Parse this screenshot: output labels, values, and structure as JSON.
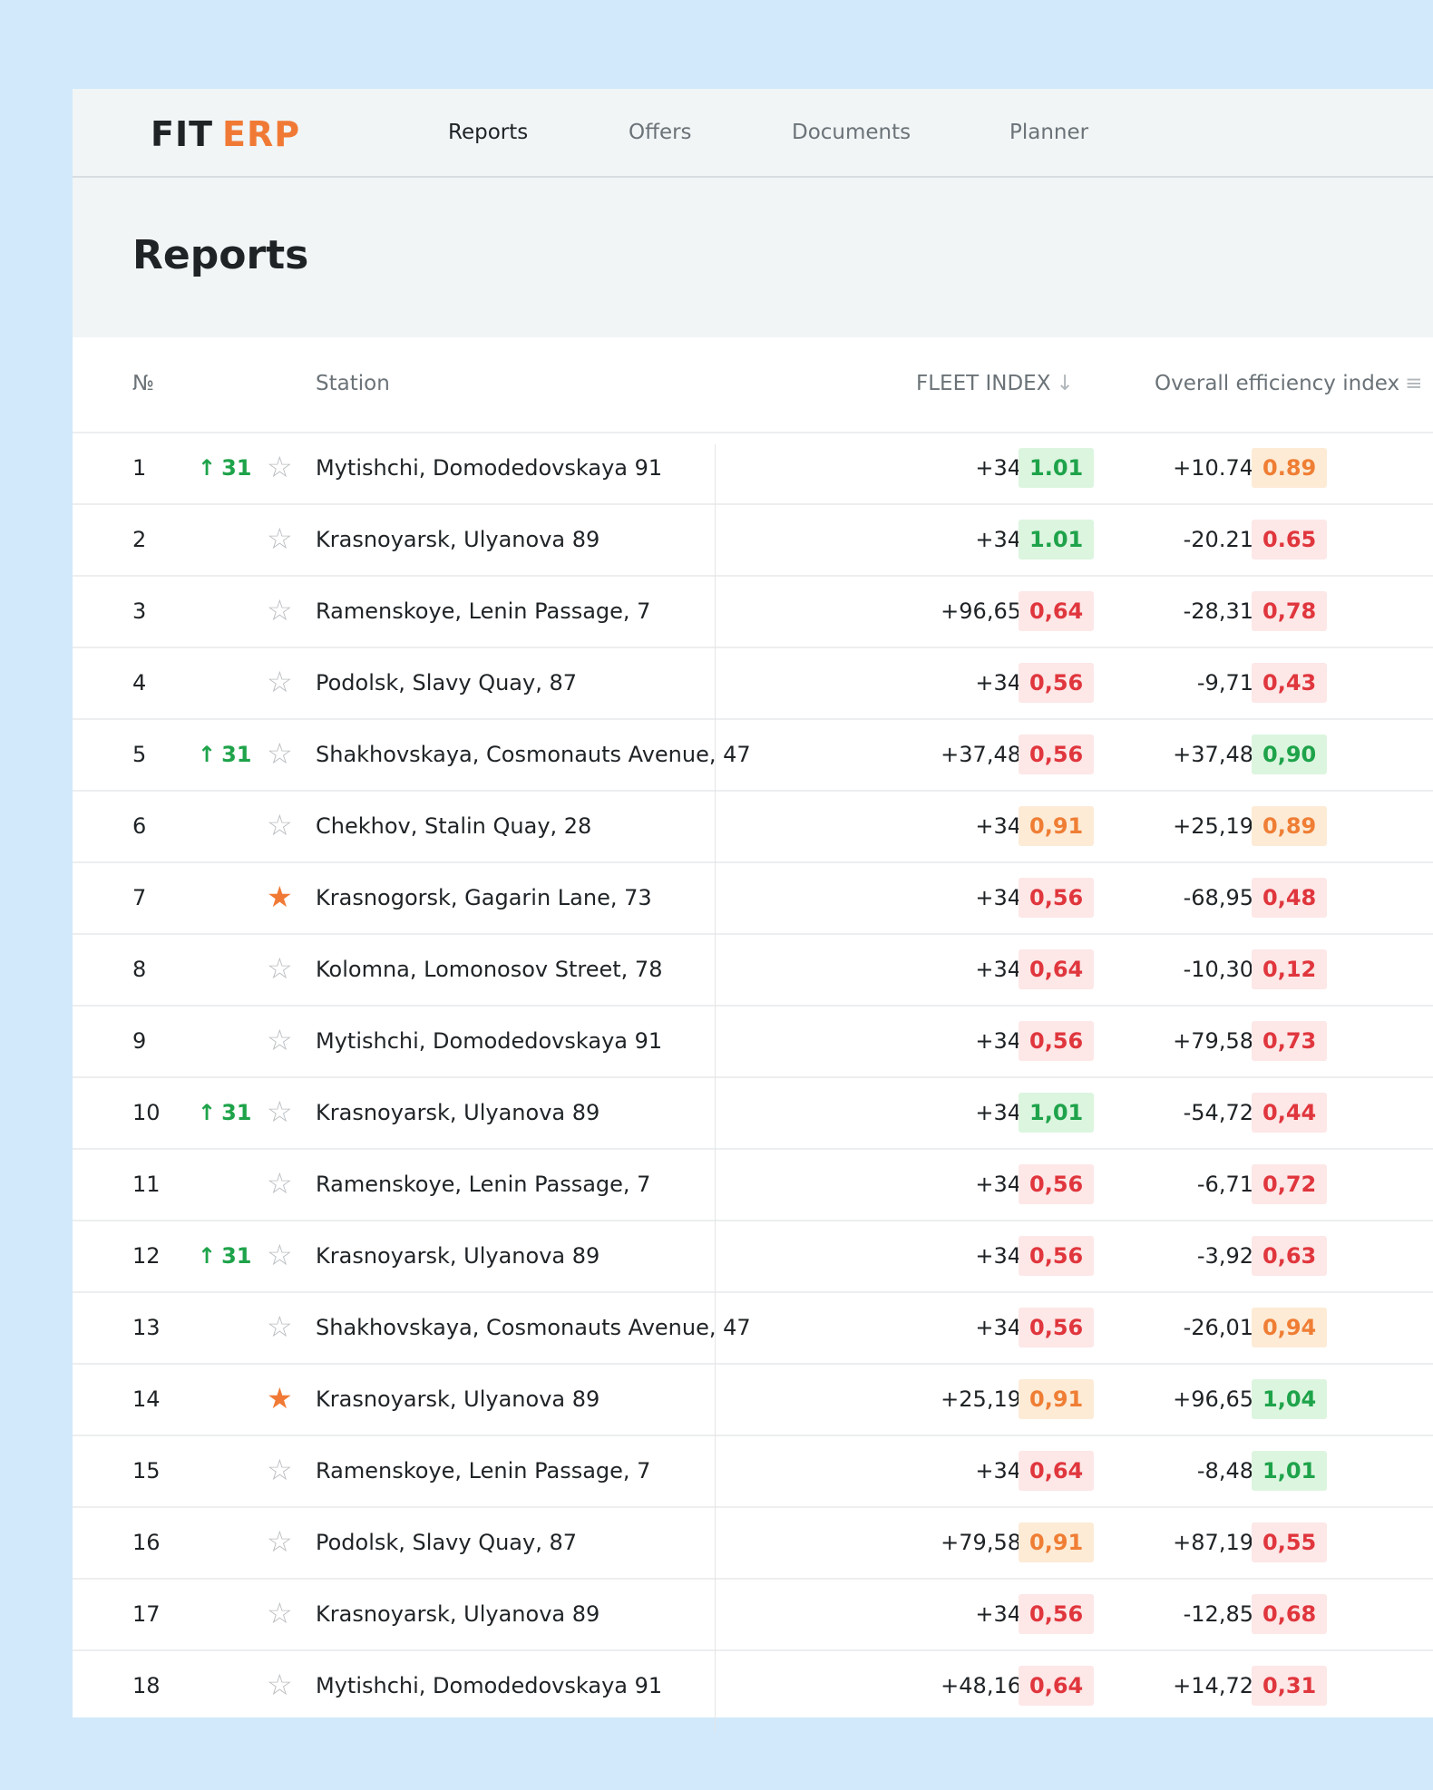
{
  "brand": {
    "part1": "FIT",
    "part2": "ERP"
  },
  "nav": [
    {
      "label": "Reports",
      "active": true
    },
    {
      "label": "Offers",
      "active": false
    },
    {
      "label": "Documents",
      "active": false
    },
    {
      "label": "Planner",
      "active": false
    }
  ],
  "page_title": "Reports",
  "columns": {
    "num": "№",
    "station": "Station",
    "fleet_index": "FLEET INDEX",
    "overall_efficiency": "Overall efficiency index"
  },
  "colors": {
    "green": "#1ea34a",
    "red": "#e0363d",
    "orange": "#ef7e34",
    "accent": "#f07a35"
  },
  "rows": [
    {
      "num": "1",
      "delta": "31",
      "starred": false,
      "station": "Mytishchi, Domodedovskaya 91",
      "fleet_change": "+34",
      "fleet_value": "1.01",
      "fleet_status": "green",
      "eff_change": "+10.74",
      "eff_value": "0.89",
      "eff_status": "orange"
    },
    {
      "num": "2",
      "delta": "",
      "starred": false,
      "station": "Krasnoyarsk, Ulyanova 89",
      "fleet_change": "+34",
      "fleet_value": "1.01",
      "fleet_status": "green",
      "eff_change": "-20.21",
      "eff_value": "0.65",
      "eff_status": "red"
    },
    {
      "num": "3",
      "delta": "",
      "starred": false,
      "station": "Ramenskoye, Lenin Passage, 7",
      "fleet_change": "+96,65",
      "fleet_value": "0,64",
      "fleet_status": "red",
      "eff_change": "-28,31",
      "eff_value": "0,78",
      "eff_status": "red"
    },
    {
      "num": "4",
      "delta": "",
      "starred": false,
      "station": "Podolsk, Slavy Quay, 87",
      "fleet_change": "+34",
      "fleet_value": "0,56",
      "fleet_status": "red",
      "eff_change": "-9,71",
      "eff_value": "0,43",
      "eff_status": "red"
    },
    {
      "num": "5",
      "delta": "31",
      "starred": false,
      "station": "Shakhovskaya, Cosmonauts Avenue, 47",
      "fleet_change": "+37,48",
      "fleet_value": "0,56",
      "fleet_status": "red",
      "eff_change": "+37,48",
      "eff_value": "0,90",
      "eff_status": "green"
    },
    {
      "num": "6",
      "delta": "",
      "starred": false,
      "station": "Chekhov, Stalin Quay, 28",
      "fleet_change": "+34",
      "fleet_value": "0,91",
      "fleet_status": "orange",
      "eff_change": "+25,19",
      "eff_value": "0,89",
      "eff_status": "orange"
    },
    {
      "num": "7",
      "delta": "",
      "starred": true,
      "station": "Krasnogorsk, Gagarin Lane, 73",
      "fleet_change": "+34",
      "fleet_value": "0,56",
      "fleet_status": "red",
      "eff_change": "-68,95",
      "eff_value": "0,48",
      "eff_status": "red"
    },
    {
      "num": "8",
      "delta": "",
      "starred": false,
      "station": "Kolomna, Lomonosov Street, 78",
      "fleet_change": "+34",
      "fleet_value": "0,64",
      "fleet_status": "red",
      "eff_change": "-10,30",
      "eff_value": "0,12",
      "eff_status": "red"
    },
    {
      "num": "9",
      "delta": "",
      "starred": false,
      "station": "Mytishchi, Domodedovskaya 91",
      "fleet_change": "+34",
      "fleet_value": "0,56",
      "fleet_status": "red",
      "eff_change": "+79,58",
      "eff_value": "0,73",
      "eff_status": "red"
    },
    {
      "num": "10",
      "delta": "31",
      "starred": false,
      "station": "Krasnoyarsk, Ulyanova 89",
      "fleet_change": "+34",
      "fleet_value": "1,01",
      "fleet_status": "green",
      "eff_change": "-54,72",
      "eff_value": "0,44",
      "eff_status": "red"
    },
    {
      "num": "11",
      "delta": "",
      "starred": false,
      "station": "Ramenskoye, Lenin Passage, 7",
      "fleet_change": "+34",
      "fleet_value": "0,56",
      "fleet_status": "red",
      "eff_change": "-6,71",
      "eff_value": "0,72",
      "eff_status": "red"
    },
    {
      "num": "12",
      "delta": "31",
      "starred": false,
      "station": "Krasnoyarsk, Ulyanova 89",
      "fleet_change": "+34",
      "fleet_value": "0,56",
      "fleet_status": "red",
      "eff_change": "-3,92",
      "eff_value": "0,63",
      "eff_status": "red"
    },
    {
      "num": "13",
      "delta": "",
      "starred": false,
      "station": "Shakhovskaya, Cosmonauts Avenue, 47",
      "fleet_change": "+34",
      "fleet_value": "0,56",
      "fleet_status": "red",
      "eff_change": "-26,01",
      "eff_value": "0,94",
      "eff_status": "orange"
    },
    {
      "num": "14",
      "delta": "",
      "starred": true,
      "station": "Krasnoyarsk, Ulyanova 89",
      "fleet_change": "+25,19",
      "fleet_value": "0,91",
      "fleet_status": "orange",
      "eff_change": "+96,65",
      "eff_value": "1,04",
      "eff_status": "green"
    },
    {
      "num": "15",
      "delta": "",
      "starred": false,
      "station": "Ramenskoye, Lenin Passage, 7",
      "fleet_change": "+34",
      "fleet_value": "0,64",
      "fleet_status": "red",
      "eff_change": "-8,48",
      "eff_value": "1,01",
      "eff_status": "green"
    },
    {
      "num": "16",
      "delta": "",
      "starred": false,
      "station": "Podolsk, Slavy Quay, 87",
      "fleet_change": "+79,58",
      "fleet_value": "0,91",
      "fleet_status": "orange",
      "eff_change": "+87,19",
      "eff_value": "0,55",
      "eff_status": "red"
    },
    {
      "num": "17",
      "delta": "",
      "starred": false,
      "station": "Krasnoyarsk, Ulyanova 89",
      "fleet_change": "+34",
      "fleet_value": "0,56",
      "fleet_status": "red",
      "eff_change": "-12,85",
      "eff_value": "0,68",
      "eff_status": "red"
    },
    {
      "num": "18",
      "delta": "",
      "starred": false,
      "station": "Mytishchi, Domodedovskaya 91",
      "fleet_change": "+48,16",
      "fleet_value": "0,64",
      "fleet_status": "red",
      "eff_change": "+14,72",
      "eff_value": "0,31",
      "eff_status": "red"
    }
  ]
}
